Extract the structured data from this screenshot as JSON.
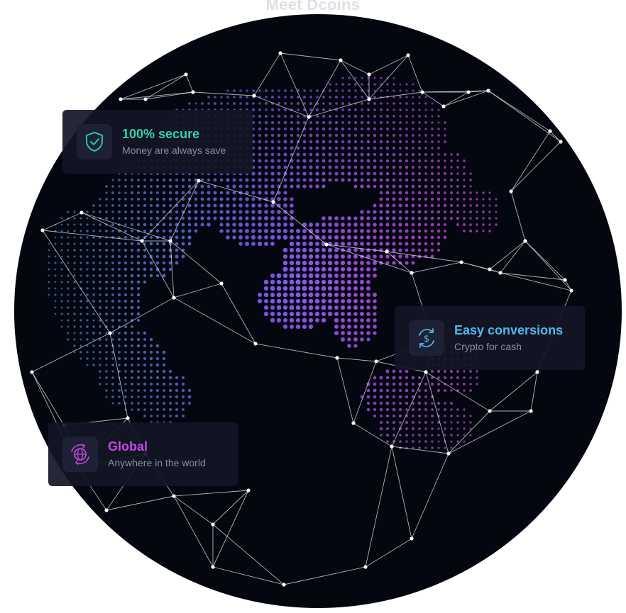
{
  "header": {
    "title": "Meet Dcoins"
  },
  "colors": {
    "background": "#04070f",
    "secure_accent": "#2fd4a6",
    "conversion_accent": "#54b8e8",
    "global_accent": "#c04dde",
    "dot_pink": "#d146e8",
    "dot_violet": "#7d5cf0",
    "dot_cyan": "#3aa6f0",
    "network_line": "#e9ebf5"
  },
  "features": [
    {
      "title": "100% secure",
      "subtitle": "Money are always save",
      "icon": "shield-check-icon"
    },
    {
      "title": "Easy conversions",
      "subtitle": "Crypto for cash",
      "icon": "dollar-exchange-icon"
    },
    {
      "title": "Global",
      "subtitle": "Anywhere in the world",
      "icon": "globe-arrows-icon"
    }
  ]
}
